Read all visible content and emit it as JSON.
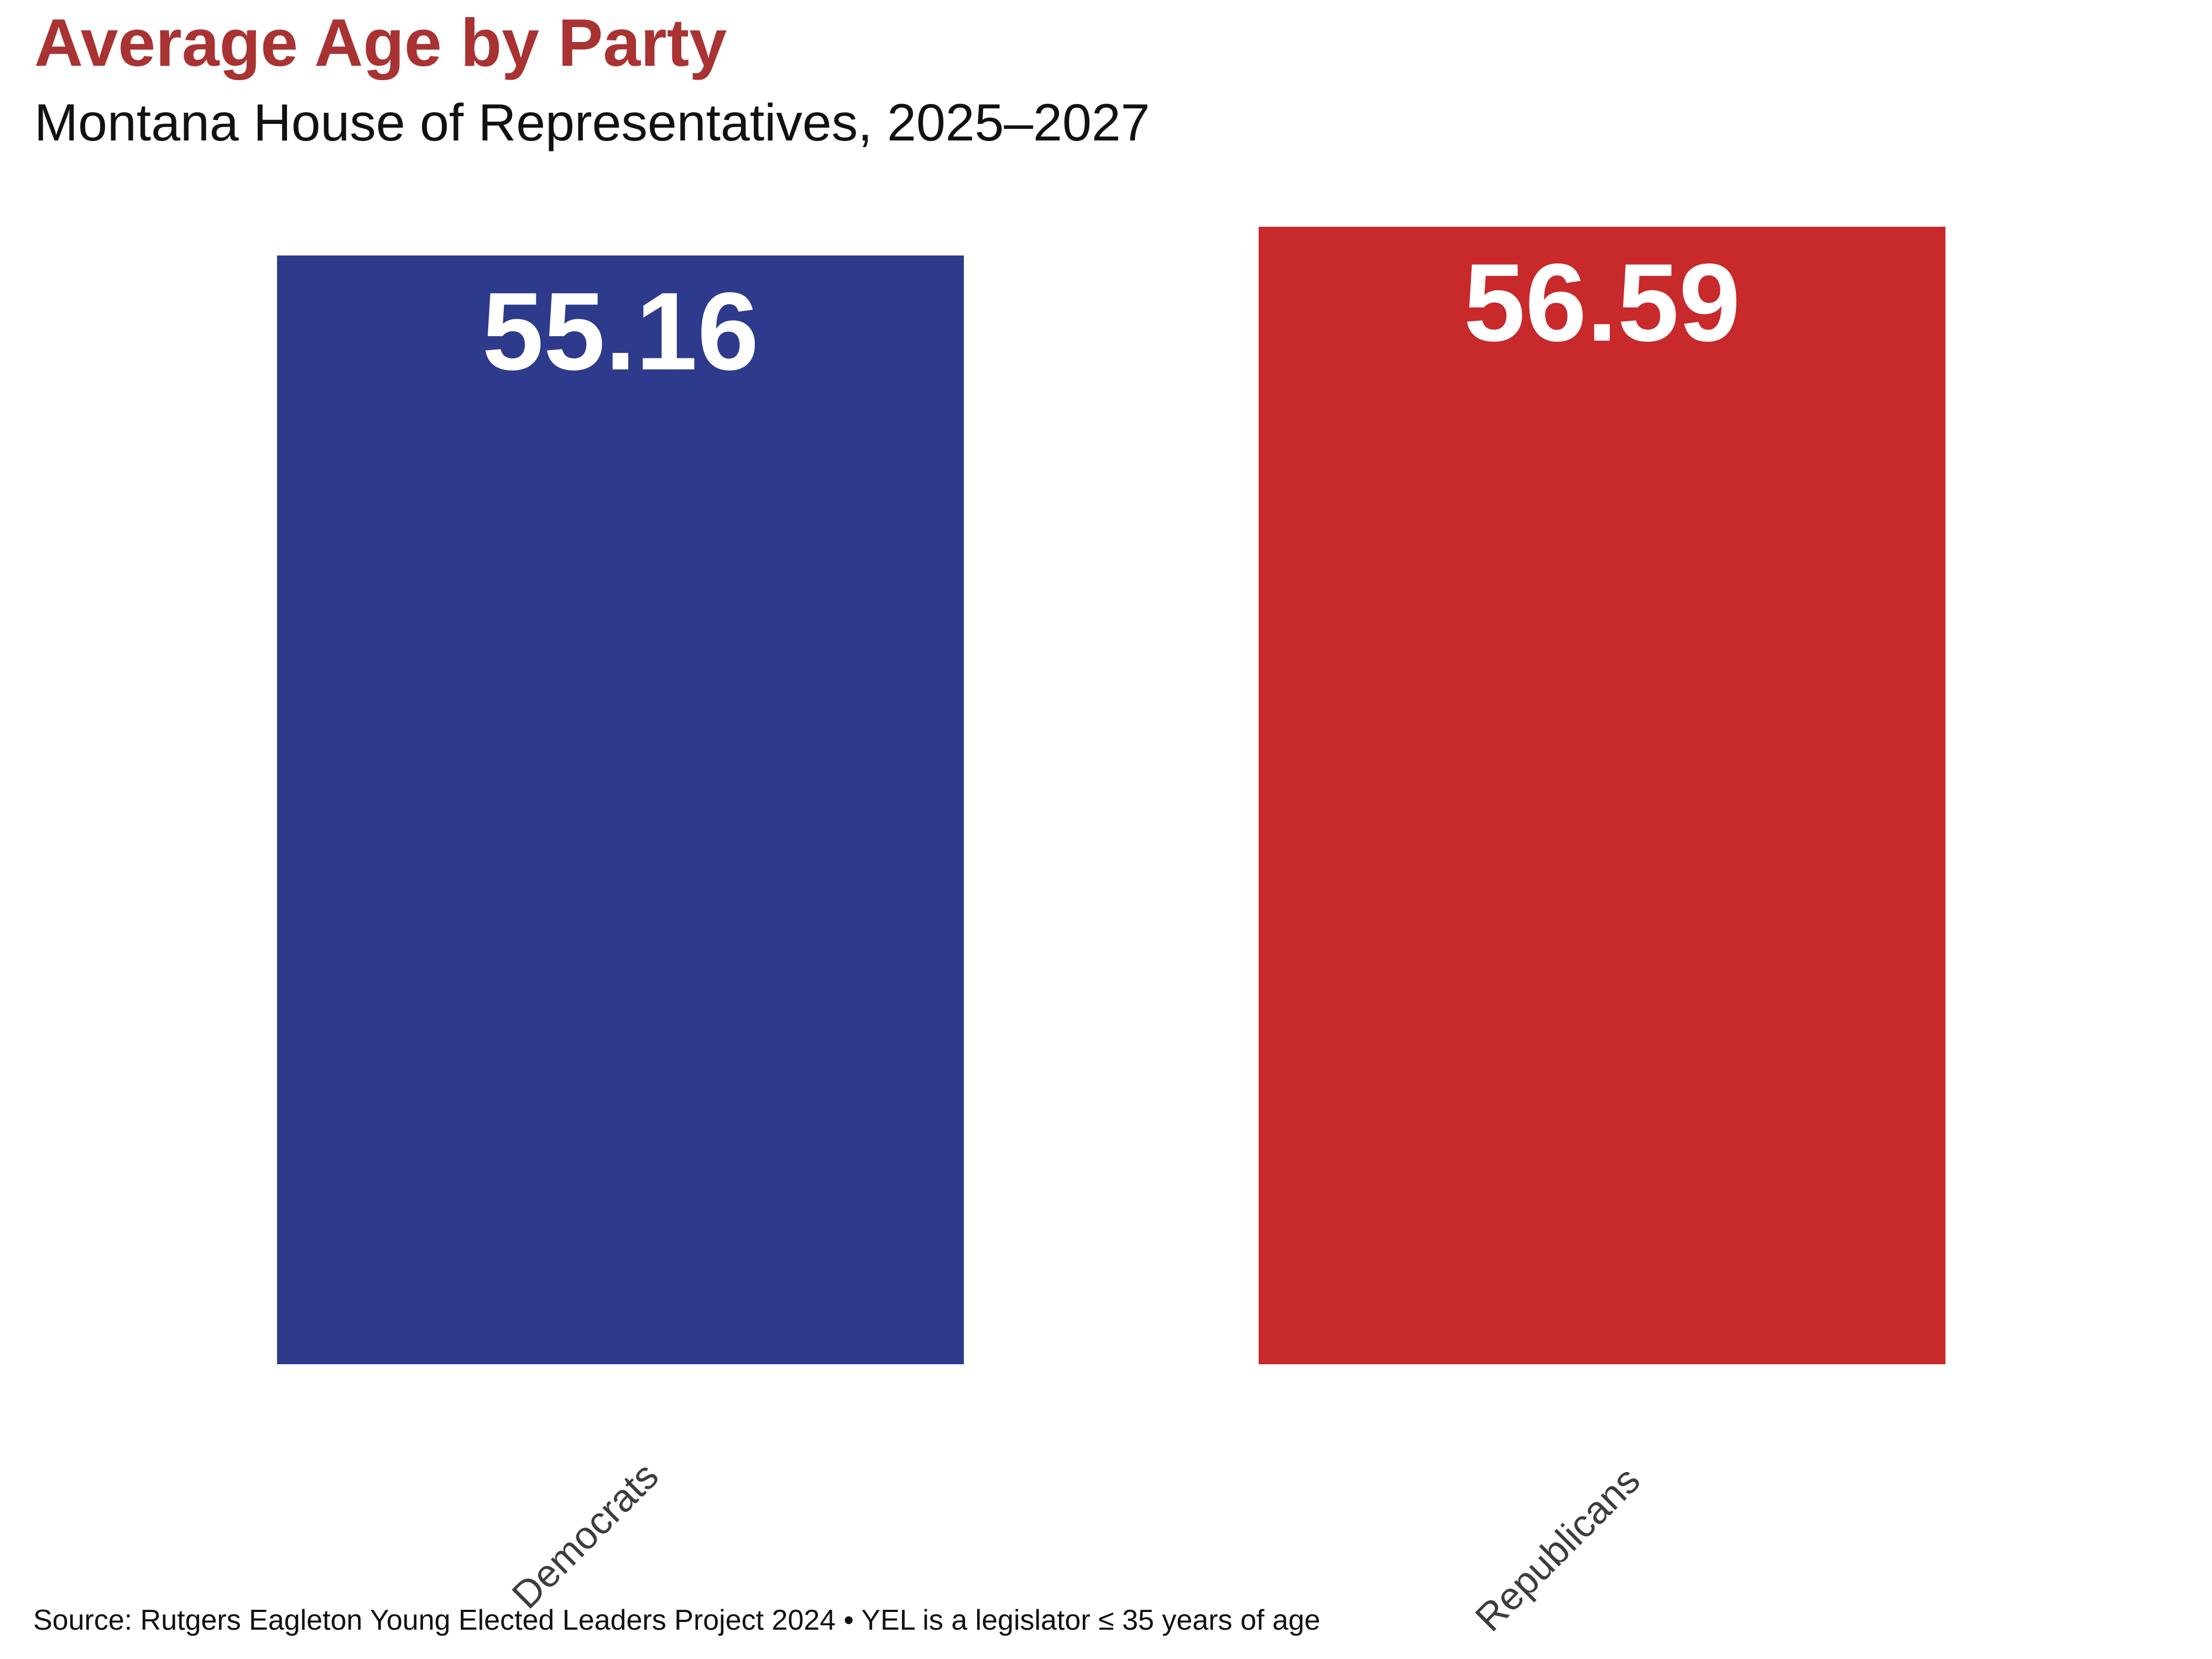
{
  "header": {
    "title": "Average Age by Party",
    "subtitle": "Montana House of Representatives, 2025–2027"
  },
  "footer": {
    "source": "Source: Rutgers Eagleton Young Elected Leaders Project 2024 • YEL is a legislator ≤ 35 years of age"
  },
  "colors": {
    "title_text": "#A93232",
    "subtitle_text": "#111111",
    "democrat_bar": "#2E3A8C",
    "republican_bar": "#C8292B",
    "value_label_text": "#FFFFFF",
    "category_label_text": "#3D3D3D",
    "background": "#FFFFFF"
  },
  "chart_data": {
    "type": "bar",
    "title": "Average Age by Party",
    "subtitle": "Montana House of Representatives, 2025–2027",
    "categories": [
      "Democrats",
      "Republicans"
    ],
    "values": [
      55.16,
      56.59
    ],
    "value_labels": [
      "55.16",
      "56.59"
    ],
    "series_colors": [
      "#2E3A8C",
      "#C8292B"
    ],
    "xlabel": "",
    "ylabel": "",
    "ylim": [
      0,
      56.59
    ],
    "grid": false,
    "legend": "none",
    "value_label_position": "inside-top",
    "x_tick_rotation_deg": 45,
    "source": "Source: Rutgers Eagleton Young Elected Leaders Project 2024 • YEL is a legislator ≤ 35 years of age"
  }
}
